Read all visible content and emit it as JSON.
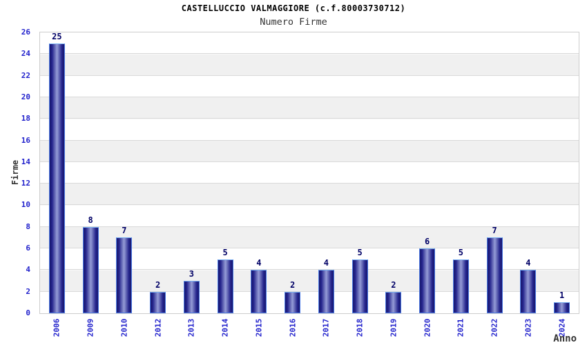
{
  "header": {
    "title": "CASTELLUCCIO VALMAGGIORE (c.f.80003730712)",
    "subtitle": "Numero Firme"
  },
  "chart_data": {
    "type": "bar",
    "title": "CASTELLUCCIO VALMAGGIORE (c.f.80003730712)",
    "subtitle": "Numero Firme",
    "xlabel": "Anno",
    "ylabel": "Firme",
    "categories": [
      "2006",
      "2009",
      "2010",
      "2012",
      "2013",
      "2014",
      "2015",
      "2016",
      "2017",
      "2018",
      "2019",
      "2020",
      "2021",
      "2022",
      "2023",
      "2024"
    ],
    "values": [
      25,
      8,
      7,
      2,
      3,
      5,
      4,
      2,
      4,
      5,
      2,
      6,
      5,
      7,
      4,
      1
    ],
    "ylim": [
      0,
      26
    ],
    "yticks": [
      0,
      2,
      4,
      6,
      8,
      10,
      12,
      14,
      16,
      18,
      20,
      22,
      24,
      26
    ],
    "grid": true,
    "legend": "none",
    "band_fill": true
  },
  "colors": {
    "axis_label_blue": "#2222cc",
    "value_label_navy": "#000066",
    "bar_edge_dark": "#17176e",
    "bar_center_light": "#959cd6",
    "bar_border_blue": "#4c7ce6",
    "bar_top_highlight": "#79b0f2",
    "band_gray": "#f0f0f0",
    "gridline_gray": "#d9d9d9",
    "plot_border_gray": "#cccccc",
    "title_black": "#000000",
    "axis_title_gray": "#333333",
    "background_white": "#ffffff"
  }
}
